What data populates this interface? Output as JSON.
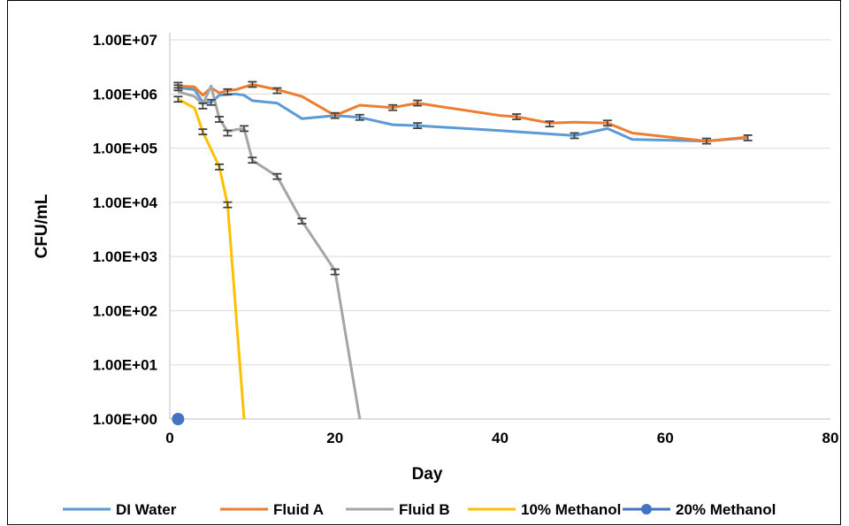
{
  "chart_data": {
    "type": "line",
    "title": "",
    "xlabel": "Day",
    "ylabel": "CFU/mL",
    "xlim": [
      0,
      80
    ],
    "xticks": [
      0,
      20,
      40,
      60,
      80
    ],
    "y_scale": "log",
    "ylim": [
      1,
      10000000
    ],
    "yticks": [
      1,
      10,
      100,
      1000,
      10000,
      100000,
      1000000,
      10000000
    ],
    "ytick_labels": [
      "1.00E+00",
      "1.00E+01",
      "1.00E+02",
      "1.00E+03",
      "1.00E+04",
      "1.00E+05",
      "1.00E+06",
      "1.00E+07"
    ],
    "grid": "horizontal",
    "legend_position": "bottom",
    "series": [
      {
        "name": "DI Water",
        "color": "#5B9BD5",
        "marker": "none",
        "x": [
          1,
          3,
          4,
          5,
          6,
          8,
          9,
          10,
          13,
          16,
          20,
          23,
          27,
          30,
          40,
          49,
          53,
          56,
          65,
          70
        ],
        "y": [
          1300000,
          1200000,
          700000,
          700000,
          950000,
          1000000,
          950000,
          750000,
          680000,
          350000,
          400000,
          370000,
          270000,
          260000,
          210000,
          170000,
          230000,
          145000,
          135000,
          155000
        ]
      },
      {
        "name": "Fluid A",
        "color": "#ED7D31",
        "marker": "none",
        "x": [
          1,
          3,
          4,
          5,
          6,
          7,
          8,
          10,
          13,
          16,
          20,
          23,
          27,
          30,
          35,
          40,
          42,
          46,
          49,
          53,
          56,
          65,
          70
        ],
        "y": [
          1400000,
          1350000,
          950000,
          1300000,
          1050000,
          1150000,
          1200000,
          1500000,
          1200000,
          900000,
          400000,
          620000,
          560000,
          680000,
          520000,
          400000,
          380000,
          290000,
          300000,
          290000,
          190000,
          135000,
          160000
        ]
      },
      {
        "name": "Fluid B",
        "color": "#A5A5A5",
        "marker": "none",
        "x": [
          1,
          3,
          4,
          5,
          6,
          7,
          8,
          9,
          10,
          13,
          16,
          20,
          23
        ],
        "y": [
          1100000,
          900000,
          650000,
          1400000,
          350000,
          200000,
          220000,
          230000,
          60000,
          30000,
          4500,
          550,
          1
        ]
      },
      {
        "name": "10% Methanol",
        "color": "#FFC000",
        "marker": "none",
        "x": [
          1,
          3,
          4,
          6,
          7,
          9
        ],
        "y": [
          800000,
          550000,
          200000,
          45000,
          9000,
          1
        ]
      },
      {
        "name": "20% Methanol",
        "color": "#4472C4",
        "marker": "circle",
        "x": [
          1
        ],
        "y": [
          1
        ]
      }
    ],
    "error_bars": [
      {
        "x": 1,
        "y": 1450000
      },
      {
        "x": 1,
        "y": 1300000
      },
      {
        "x": 1,
        "y": 800000
      },
      {
        "x": 4,
        "y": 600000
      },
      {
        "x": 4,
        "y": 200000
      },
      {
        "x": 5,
        "y": 700000
      },
      {
        "x": 6,
        "y": 340000
      },
      {
        "x": 6,
        "y": 45000
      },
      {
        "x": 7,
        "y": 1100000
      },
      {
        "x": 7,
        "y": 190000
      },
      {
        "x": 7,
        "y": 9000
      },
      {
        "x": 9,
        "y": 230000
      },
      {
        "x": 10,
        "y": 1500000
      },
      {
        "x": 10,
        "y": 60000
      },
      {
        "x": 13,
        "y": 1150000
      },
      {
        "x": 13,
        "y": 30000
      },
      {
        "x": 16,
        "y": 4500
      },
      {
        "x": 20,
        "y": 400000
      },
      {
        "x": 20,
        "y": 520
      },
      {
        "x": 23,
        "y": 370000
      },
      {
        "x": 27,
        "y": 560000
      },
      {
        "x": 30,
        "y": 260000
      },
      {
        "x": 30,
        "y": 680000
      },
      {
        "x": 42,
        "y": 380000
      },
      {
        "x": 46,
        "y": 280000
      },
      {
        "x": 49,
        "y": 170000
      },
      {
        "x": 53,
        "y": 290000
      },
      {
        "x": 65,
        "y": 135000
      },
      {
        "x": 70,
        "y": 155000
      }
    ]
  }
}
